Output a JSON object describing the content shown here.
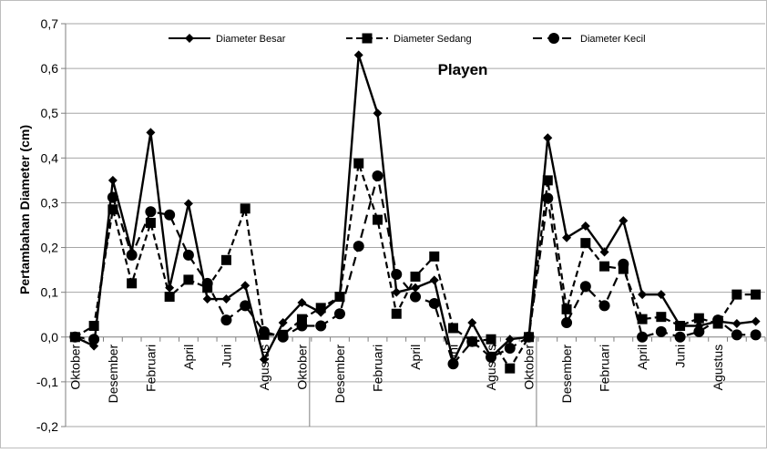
{
  "chart_data": {
    "type": "line",
    "title": "Playen",
    "ylabel": "Pertambahan Diameter  (cm)",
    "xlabel": "",
    "ylim": [
      -0.2,
      0.7
    ],
    "yticks": [
      "-0,2",
      "-0,1",
      "0,0",
      "0,1",
      "0,2",
      "0,3",
      "0,4",
      "0,5",
      "0,6",
      "0,7"
    ],
    "grid": "horizontal",
    "legend_position": "top",
    "x_labels": [
      "Oktober",
      "Desember",
      "Februari",
      "April",
      "Juni",
      "Agustus",
      "Oktober",
      "Desember",
      "Februari",
      "April",
      "Juni",
      "Agustus",
      "Oktober",
      "Desember",
      "Februari",
      "April",
      "Juni",
      "Agustus"
    ],
    "series": [
      {
        "name": "Diameter Besar",
        "marker": "diamond",
        "dash": "solid",
        "values": [
          0.0,
          -0.02,
          0.35,
          0.19,
          0.457,
          0.11,
          0.298,
          0.085,
          0.085,
          0.115,
          -0.05,
          0.032,
          0.077,
          0.055,
          0.09,
          0.63,
          0.5,
          0.1,
          0.11,
          0.127,
          -0.055,
          0.032,
          -0.045,
          -0.005,
          0.0,
          0.445,
          0.222,
          0.248,
          0.19,
          0.26,
          0.095,
          0.095,
          0.025,
          0.025,
          0.035,
          0.03,
          0.035
        ]
      },
      {
        "name": "Diameter Sedang",
        "marker": "square",
        "dash": "dash",
        "values": [
          0.0,
          0.025,
          0.285,
          0.12,
          0.255,
          0.09,
          0.128,
          0.11,
          0.172,
          0.287,
          0.005,
          0.005,
          0.04,
          0.065,
          0.09,
          0.388,
          0.262,
          0.052,
          0.135,
          0.18,
          0.02,
          -0.01,
          -0.005,
          -0.07,
          0.0,
          0.35,
          0.062,
          0.21,
          0.158,
          0.152,
          0.04,
          0.045,
          0.025,
          0.042,
          0.03,
          0.095,
          0.095
        ]
      },
      {
        "name": "Diameter Kecil",
        "marker": "circle",
        "dash": "longdash",
        "values": [
          0.0,
          -0.005,
          0.312,
          0.183,
          0.28,
          0.273,
          0.183,
          0.12,
          0.038,
          0.07,
          0.012,
          0.0,
          0.025,
          0.025,
          0.052,
          0.203,
          0.36,
          0.14,
          0.09,
          0.075,
          -0.06,
          -0.01,
          -0.045,
          -0.025,
          0.0,
          0.31,
          0.032,
          0.113,
          0.07,
          0.163,
          0.0,
          0.012,
          0.0,
          0.012,
          0.038,
          0.005,
          0.005
        ]
      }
    ]
  }
}
